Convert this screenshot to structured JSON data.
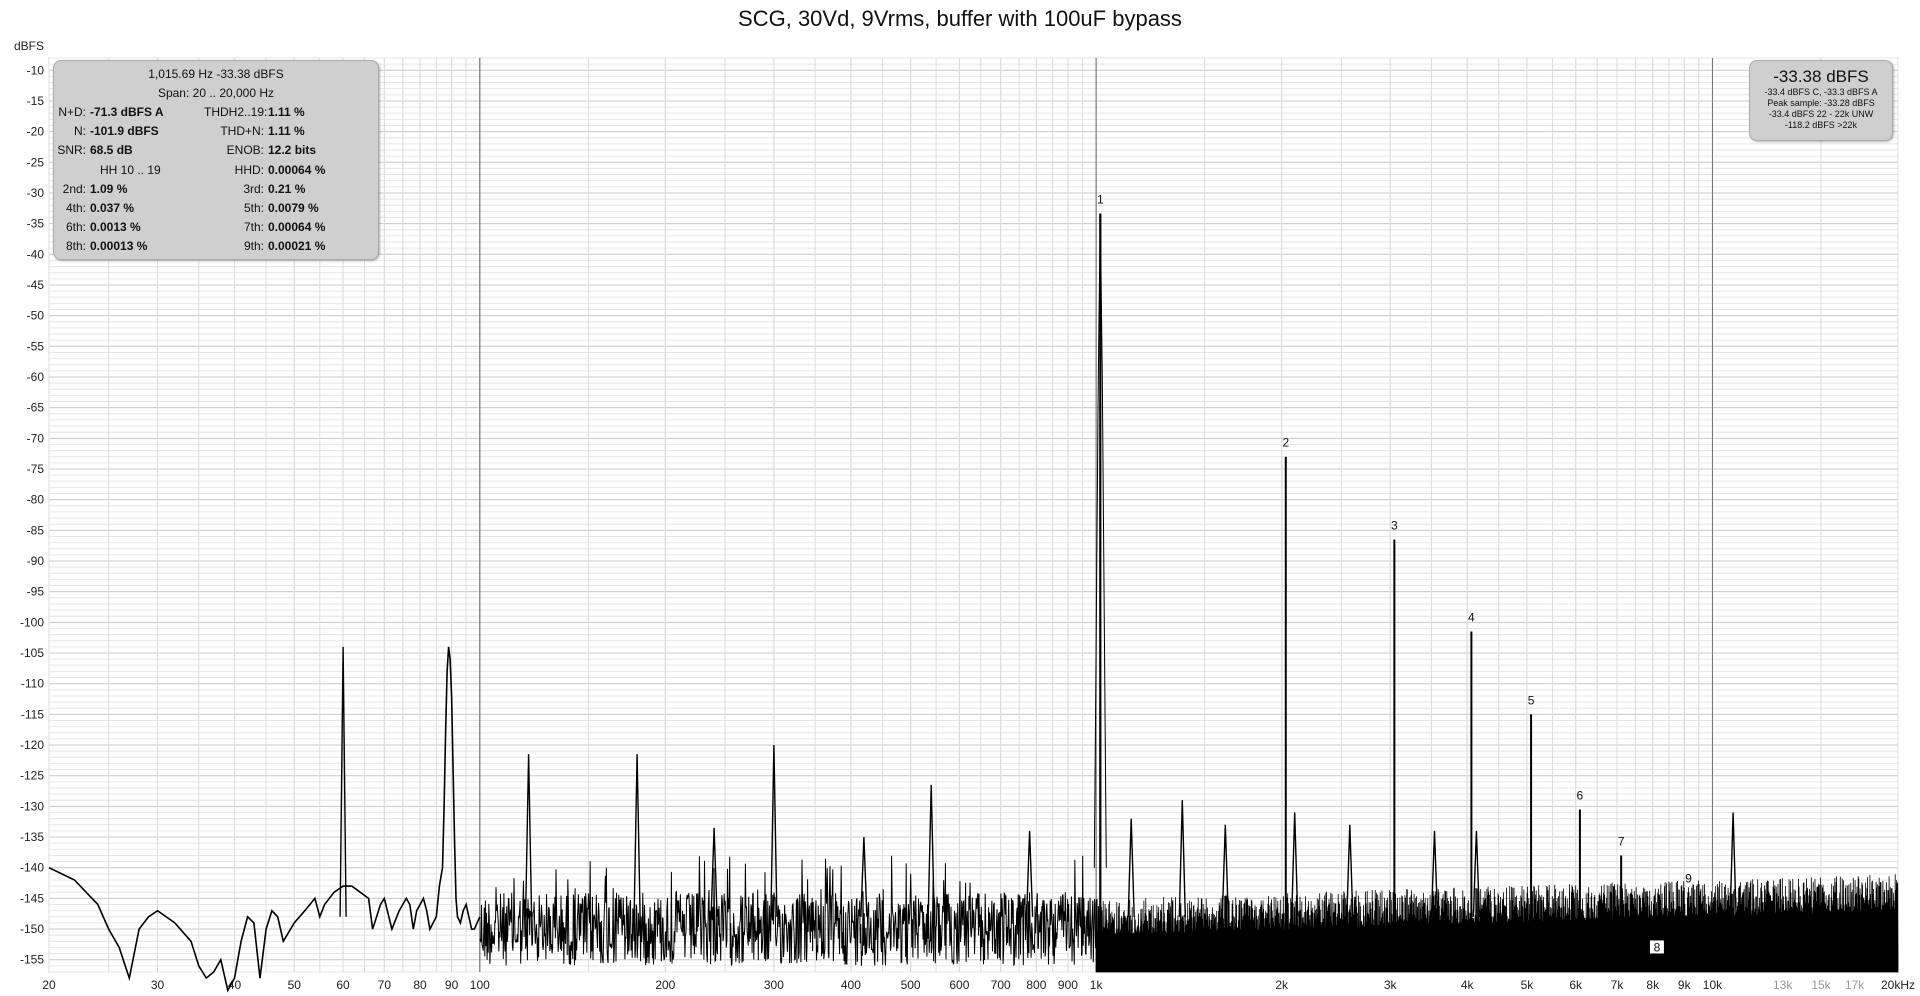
{
  "title": "SCG, 30Vd, 9Vrms, buffer with 100uF bypass",
  "chart_data": {
    "type": "line",
    "title": "SCG, 30Vd, 9Vrms, buffer with 100uF bypass",
    "ylabel": "dBFS",
    "xlabel": "",
    "x_scale": "log",
    "xlim": [
      20,
      20000
    ],
    "ylim": [
      -157,
      -8
    ],
    "grid": true,
    "y_ticks": [
      -10,
      -15,
      -20,
      -25,
      -30,
      -35,
      -40,
      -45,
      -50,
      -55,
      -60,
      -65,
      -70,
      -75,
      -80,
      -85,
      -90,
      -95,
      -100,
      -105,
      -110,
      -115,
      -120,
      -125,
      -130,
      -135,
      -140,
      -145,
      -150,
      -155
    ],
    "x_ticks": [
      {
        "v": 20,
        "label": "20"
      },
      {
        "v": 30,
        "label": "30"
      },
      {
        "v": 40,
        "label": "40"
      },
      {
        "v": 50,
        "label": "50"
      },
      {
        "v": 60,
        "label": "60"
      },
      {
        "v": 70,
        "label": "70"
      },
      {
        "v": 80,
        "label": "80"
      },
      {
        "v": 90,
        "label": "90"
      },
      {
        "v": 100,
        "label": "100"
      },
      {
        "v": 200,
        "label": "200"
      },
      {
        "v": 300,
        "label": "300"
      },
      {
        "v": 400,
        "label": "400"
      },
      {
        "v": 500,
        "label": "500"
      },
      {
        "v": 600,
        "label": "600"
      },
      {
        "v": 700,
        "label": "700"
      },
      {
        "v": 800,
        "label": "800"
      },
      {
        "v": 900,
        "label": "900"
      },
      {
        "v": 1000,
        "label": "1k"
      },
      {
        "v": 2000,
        "label": "2k"
      },
      {
        "v": 3000,
        "label": "3k"
      },
      {
        "v": 4000,
        "label": "4k"
      },
      {
        "v": 5000,
        "label": "5k"
      },
      {
        "v": 6000,
        "label": "6k"
      },
      {
        "v": 7000,
        "label": "7k"
      },
      {
        "v": 8000,
        "label": "8k"
      },
      {
        "v": 9000,
        "label": "9k"
      },
      {
        "v": 10000,
        "label": "10k"
      },
      {
        "v": 13000,
        "label": "13k",
        "faded": true
      },
      {
        "v": 15000,
        "label": "15k",
        "faded": true
      },
      {
        "v": 17000,
        "label": "17k",
        "faded": true
      },
      {
        "v": 20000,
        "label": "20kHz"
      }
    ],
    "series": [
      {
        "points": [
          [
            20,
            -140
          ],
          [
            22,
            -142
          ],
          [
            24,
            -146
          ],
          [
            25,
            -150
          ],
          [
            26,
            -153
          ],
          [
            27,
            -158
          ],
          [
            28,
            -150
          ],
          [
            29,
            -148
          ],
          [
            30,
            -147
          ],
          [
            32,
            -149
          ],
          [
            34,
            -152
          ],
          [
            35,
            -156
          ],
          [
            36,
            -158
          ],
          [
            37,
            -157
          ],
          [
            38,
            -155
          ],
          [
            39,
            -160
          ],
          [
            40,
            -158
          ],
          [
            41,
            -152
          ],
          [
            42,
            -148
          ],
          [
            43,
            -149
          ],
          [
            44,
            -158
          ],
          [
            45,
            -150
          ],
          [
            46,
            -147
          ],
          [
            47,
            -148
          ],
          [
            48,
            -152
          ],
          [
            50,
            -149
          ],
          [
            52,
            -147
          ],
          [
            54,
            -145
          ],
          [
            55,
            -148
          ],
          [
            56,
            -146
          ],
          [
            58,
            -144
          ],
          [
            60,
            -143
          ],
          [
            62,
            -143
          ],
          [
            64,
            -144
          ],
          [
            66,
            -145
          ],
          [
            67,
            -150
          ],
          [
            68,
            -148
          ],
          [
            69,
            -146
          ],
          [
            70,
            -145
          ],
          [
            72,
            -150
          ],
          [
            74,
            -147
          ],
          [
            75,
            -146
          ],
          [
            76,
            -145
          ],
          [
            77,
            -146
          ],
          [
            78,
            -150
          ],
          [
            79,
            -147
          ],
          [
            80,
            -146
          ],
          [
            81,
            -145
          ],
          [
            82,
            -147
          ],
          [
            83,
            -150
          ],
          [
            84,
            -149
          ],
          [
            85,
            -148
          ],
          [
            86,
            -143
          ],
          [
            87,
            -140
          ],
          [
            87.5,
            -130
          ],
          [
            88,
            -118
          ],
          [
            88.5,
            -108
          ],
          [
            89,
            -104
          ],
          [
            89.5,
            -106
          ],
          [
            90,
            -112
          ],
          [
            90.5,
            -124
          ],
          [
            91,
            -136
          ],
          [
            91.5,
            -145
          ],
          [
            92,
            -148
          ],
          [
            93,
            -149
          ],
          [
            94,
            -147
          ],
          [
            95,
            -146
          ],
          [
            96,
            -148
          ],
          [
            97,
            -150
          ],
          [
            98,
            -150
          ],
          [
            99,
            -149
          ],
          [
            100,
            -148
          ]
        ]
      }
    ],
    "harmonics": [
      {
        "label": "1",
        "freq": 1015.69,
        "level": -33.38
      },
      {
        "label": "2",
        "freq": 2031,
        "level": -73
      },
      {
        "label": "3",
        "freq": 3047,
        "level": -86.5
      },
      {
        "label": "4",
        "freq": 4063,
        "level": -101.5
      },
      {
        "label": "5",
        "freq": 5078,
        "level": -115
      },
      {
        "label": "6",
        "freq": 6094,
        "level": -130.5
      },
      {
        "label": "7",
        "freq": 7110,
        "level": -138
      },
      {
        "label": "8",
        "freq": 8126,
        "level": -153
      },
      {
        "label": "9",
        "freq": 9141,
        "level": -144
      }
    ],
    "spurs": [
      {
        "freq": 60,
        "level": -104
      },
      {
        "freq": 120,
        "level": -121.5
      },
      {
        "freq": 180,
        "level": -121.5
      },
      {
        "freq": 240,
        "level": -133.5
      },
      {
        "freq": 300,
        "level": -120
      },
      {
        "freq": 420,
        "level": -135
      },
      {
        "freq": 540,
        "level": -126.5
      },
      {
        "freq": 780,
        "level": -134
      },
      {
        "freq": 1140,
        "level": -132
      },
      {
        "freq": 1380,
        "level": -129
      },
      {
        "freq": 1620,
        "level": -133
      },
      {
        "freq": 2100,
        "level": -131
      },
      {
        "freq": 2580,
        "level": -133
      },
      {
        "freq": 3540,
        "level": -134
      },
      {
        "freq": 4140,
        "level": -134
      },
      {
        "freq": 10800,
        "level": -131
      }
    ],
    "noise_floor": {
      "from_freq": 1000,
      "to_freq": 20000,
      "level_top": -141,
      "level_bottom": -157
    }
  },
  "stats": {
    "freq_line": "1,015.69 Hz  -33.38 dBFS",
    "span_line": "Span: 20 .. 20,000 Hz",
    "rows": [
      {
        "l1": "N+D:",
        "v1": "-71.3 dBFS A",
        "l2": "THDH2..19:",
        "v2": "1.11 %"
      },
      {
        "l1": "N:",
        "v1": "-101.9 dBFS",
        "l2": "THD+N:",
        "v2": "1.11 %"
      },
      {
        "l1": "SNR:",
        "v1": "68.5 dB",
        "l2": "ENOB:",
        "v2": "12.2 bits"
      },
      {
        "l1": "",
        "v1": "HH 10 .. 19",
        "l2": "HHD:",
        "v2": "0.00064 %"
      },
      {
        "l1": "2nd:",
        "v1": "1.09 %",
        "l2": "3rd:",
        "v2": "0.21 %"
      },
      {
        "l1": "4th:",
        "v1": "0.037 %",
        "l2": "5th:",
        "v2": "0.0079 %"
      },
      {
        "l1": "6th:",
        "v1": "0.0013 %",
        "l2": "7th:",
        "v2": "0.00064 %"
      },
      {
        "l1": "8th:",
        "v1": "0.00013 %",
        "l2": "9th:",
        "v2": "0.00021 %"
      }
    ]
  },
  "peak": {
    "main": "-33.38 dBFS",
    "lines": [
      "-33.4 dBFS C, -33.3 dBFS A",
      "Peak sample: -33.28 dBFS",
      "-33.4 dBFS 22 - 22k UNW",
      "-118.2 dBFS >22k"
    ]
  }
}
